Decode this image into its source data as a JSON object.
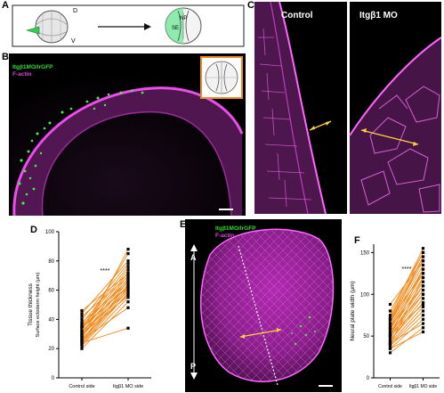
{
  "panel_labels": {
    "a": "A",
    "b": "B",
    "c": "C",
    "d": "D",
    "e": "E",
    "f": "F"
  },
  "panel_a": {
    "dorsal": "D",
    "ventral": "V",
    "np": "NP",
    "se": "SE"
  },
  "panel_b": {
    "legend_gfp": "Itgβ1MO/lrGFP",
    "legend_actin": "F-actin"
  },
  "panel_c": {
    "control": "Control",
    "mo": "Itgβ1 MO"
  },
  "panel_e": {
    "legend_gfp": "Itgβ1MO/lrGFP",
    "legend_actin": "F-actin",
    "anterior": "A",
    "posterior": "P"
  },
  "colors": {
    "magenta": "#e040e0",
    "green": "#33dd33",
    "orange": "#f08a1c",
    "yellow": "#ffd23a"
  },
  "chart_data": [
    {
      "panel": "D",
      "type": "line",
      "categories": [
        "Control side",
        "Itgβ1 MO side"
      ],
      "ylabel_line1": "Tissue thickness",
      "ylabel_line2": "Surface ectoderm height (μm)",
      "ylim": [
        0,
        100
      ],
      "yticks": [
        0,
        20,
        40,
        60,
        80,
        100
      ],
      "significance": "****",
      "pairs": [
        [
          20,
          52
        ],
        [
          22,
          55
        ],
        [
          23,
          58
        ],
        [
          24,
          60
        ],
        [
          25,
          62
        ],
        [
          26,
          64
        ],
        [
          27,
          57
        ],
        [
          28,
          66
        ],
        [
          29,
          68
        ],
        [
          30,
          61
        ],
        [
          31,
          70
        ],
        [
          32,
          59
        ],
        [
          33,
          72
        ],
        [
          34,
          63
        ],
        [
          35,
          74
        ],
        [
          36,
          67
        ],
        [
          37,
          76
        ],
        [
          38,
          65
        ],
        [
          40,
          78
        ],
        [
          42,
          69
        ],
        [
          44,
          80
        ],
        [
          46,
          71
        ],
        [
          32,
          85
        ],
        [
          28,
          88
        ],
        [
          26,
          48
        ],
        [
          24,
          34
        ],
        [
          35,
          62
        ],
        [
          30,
          56
        ]
      ]
    },
    {
      "panel": "F",
      "type": "line",
      "categories": [
        "Control side",
        "Itgβ1 MO side"
      ],
      "ylabel": "Neural plate width (μm)",
      "ylim": [
        0,
        160
      ],
      "yticks": [
        0,
        50,
        100,
        150
      ],
      "significance": "****",
      "pairs": [
        [
          30,
          60
        ],
        [
          35,
          70
        ],
        [
          40,
          80
        ],
        [
          42,
          85
        ],
        [
          45,
          95
        ],
        [
          48,
          100
        ],
        [
          50,
          105
        ],
        [
          52,
          110
        ],
        [
          55,
          115
        ],
        [
          58,
          120
        ],
        [
          60,
          125
        ],
        [
          62,
          130
        ],
        [
          65,
          135
        ],
        [
          68,
          140
        ],
        [
          70,
          145
        ],
        [
          72,
          150
        ],
        [
          75,
          155
        ],
        [
          45,
          90
        ],
        [
          50,
          130
        ],
        [
          55,
          100
        ],
        [
          40,
          120
        ],
        [
          38,
          75
        ],
        [
          60,
          110
        ],
        [
          65,
          145
        ],
        [
          70,
          125
        ],
        [
          80,
          150
        ],
        [
          88,
          140
        ],
        [
          35,
          55
        ],
        [
          42,
          65
        ],
        [
          52,
          88
        ]
      ]
    }
  ]
}
